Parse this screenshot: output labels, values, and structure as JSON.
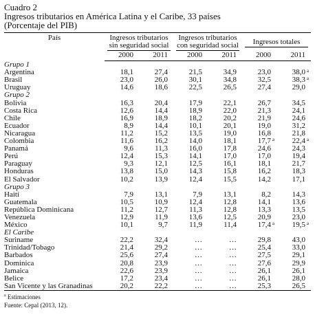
{
  "caption": {
    "label": "Cuadro 2",
    "title": "Ingresos tributarios en América Latina y el Caribe, 33 países",
    "subtitle": "(Porcentaje del PIB)"
  },
  "table": {
    "country_header": "País",
    "column_groups": [
      {
        "label": "Ingresos tributarios sin seguridad social",
        "years": [
          "2000",
          "2011"
        ]
      },
      {
        "label": "Ingresos tributarios con seguridad social",
        "years": [
          "2000",
          "2011"
        ]
      },
      {
        "label": "Ingresos totales",
        "years": [
          "2000",
          "2011"
        ]
      }
    ],
    "sections": [
      {
        "label": "Grupo 1",
        "rows": [
          {
            "country": "Argentina",
            "values": [
              "18,1",
              "27,4",
              "21,5",
              "34,9",
              "23,0",
              {
                "text": "38,0",
                "note": "a"
              }
            ]
          },
          {
            "country": "Brasil",
            "values": [
              "23,0",
              "26,0",
              "30,1",
              "34,8",
              "32,5",
              {
                "text": "38,3",
                "note": "a"
              }
            ]
          },
          {
            "country": "Uruguay",
            "values": [
              "14,6",
              "18,6",
              "22,5",
              "26,5",
              "27,4",
              "29,0"
            ]
          }
        ]
      },
      {
        "label": "Grupo 2",
        "rows": [
          {
            "country": "Bolivia",
            "values": [
              "16,3",
              "20,4",
              "17,9",
              "22,1",
              "26,7",
              "34,5"
            ]
          },
          {
            "country": "Costa Rica",
            "values": [
              "12,6",
              "14,4",
              "18,9",
              "22,0",
              "21,3",
              "24,1"
            ]
          },
          {
            "country": "Chile",
            "values": [
              "16,9",
              "18,9",
              "18,2",
              "20,2",
              "21,9",
              "24,6"
            ]
          },
          {
            "country": "Ecuador",
            "values": [
              "8,9",
              "14,4",
              "10,1",
              "20,1",
              "19,0",
              "31,2"
            ]
          },
          {
            "country": "Nicaragua",
            "values": [
              "11,2",
              "15,2",
              "13,5",
              "19,0",
              "16,8",
              "21,8"
            ]
          },
          {
            "country": "Colombia",
            "values": [
              "11,6",
              "16,2",
              "14,0",
              "18,1",
              {
                "text": "17,7",
                "note": "a"
              },
              {
                "text": "22,4",
                "note": "a"
              }
            ]
          },
          {
            "country": "Panamá",
            "values": [
              "9,6",
              "11,3",
              "16,0",
              "17,8",
              "24,6",
              "24,3"
            ]
          },
          {
            "country": "Perú",
            "values": [
              "12,4",
              "15,3",
              "14,1",
              "17,0",
              "17,0",
              "19,4"
            ]
          },
          {
            "country": "Paraguay",
            "values": [
              "9,3",
              "12,1",
              "12,5",
              "16,1",
              "18,1",
              "21,7"
            ]
          },
          {
            "country": "Honduras",
            "values": [
              "13,8",
              "15,0",
              "14,3",
              "15,8",
              "16,2",
              "18,3"
            ]
          },
          {
            "country": "El Salvador",
            "values": [
              "10,2",
              "13,9",
              "12,4",
              "15,5",
              "14,2",
              "17,1"
            ]
          }
        ]
      },
      {
        "label": "Grupo 3",
        "rows": [
          {
            "country": "Haití",
            "values": [
              "7,9",
              "13,1",
              "7,9",
              "13,1",
              "8,2",
              "14,3"
            ]
          },
          {
            "country": "Guatemala",
            "values": [
              "10,5",
              "10,9",
              "12,4",
              "12,8",
              "14,1",
              "13,6"
            ]
          },
          {
            "country": "República Dominicana",
            "values": [
              "11,2",
              "12,7",
              "11,3",
              "12,8",
              "13,3",
              "13,5"
            ]
          },
          {
            "country": "Venezuela",
            "values": [
              "12,9",
              "11,9",
              "13,6",
              "12,5",
              "20,9",
              "23,0"
            ]
          },
          {
            "country": "México",
            "values": [
              "10,1",
              "9,7",
              "11,9",
              "11,4",
              {
                "text": "17,4",
                "note": "a"
              },
              {
                "text": "19,5",
                "note": "a"
              }
            ]
          }
        ]
      },
      {
        "label": "El Caribe",
        "rows": [
          {
            "country": "Suriname",
            "values": [
              "22,2",
              "32,4",
              "…",
              "…",
              "29,8",
              "43,0"
            ]
          },
          {
            "country": "Trinidad/Tobago",
            "values": [
              "21,4",
              "29,2",
              "…",
              "…",
              "25,4",
              "33,0"
            ]
          },
          {
            "country": "Barbados",
            "values": [
              "25,6",
              "27,4",
              "…",
              "…",
              "27,5",
              "29,1"
            ]
          },
          {
            "country": "Dominica",
            "values": [
              "20,8",
              "23,9",
              "…",
              "…",
              "27,6",
              "29,9"
            ]
          },
          {
            "country": "Jamaica",
            "values": [
              "22,6",
              "23,9",
              "…",
              "…",
              "26,1",
              "26,1"
            ]
          },
          {
            "country": "Belice",
            "values": [
              "17,2",
              "23,4",
              "…",
              "…",
              "26,1",
              "28,0"
            ]
          },
          {
            "country": "San Vicente y las Granadinas",
            "values": [
              "20,2",
              "22,2",
              "…",
              "…",
              "25,3",
              "26,5"
            ]
          }
        ]
      }
    ]
  },
  "notes": {
    "estimate": {
      "mark": "a",
      "text": "Estimaciones"
    },
    "source": "Fuente: Cepal (2013, 12)."
  }
}
